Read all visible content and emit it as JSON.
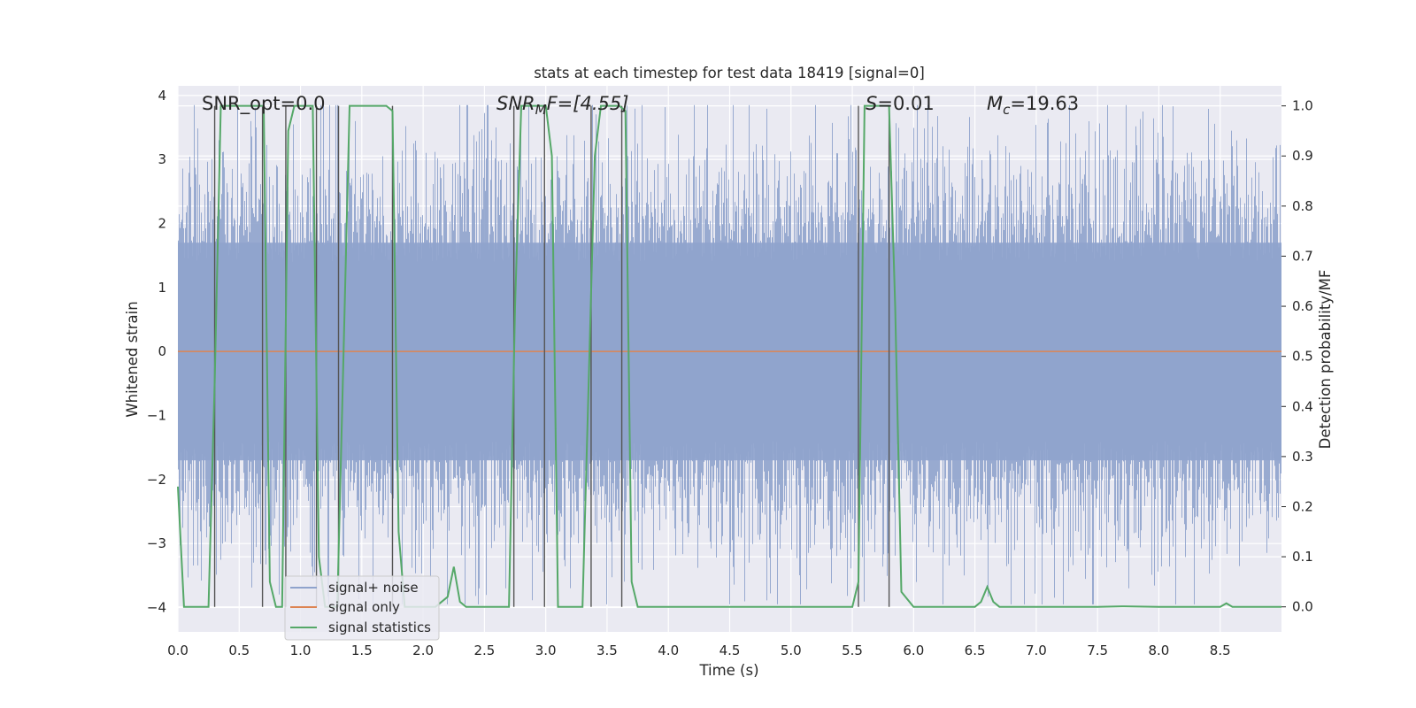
{
  "chart_data": {
    "type": "line",
    "title": "stats at each timestep for test data 18419 [signal=0]",
    "xlabel": "Time (s)",
    "ylabel_left": "Whitened strain",
    "ylabel_right": "Detection probability/MF",
    "xlim": [
      0.0,
      9.0
    ],
    "ylim_left": [
      -4.38,
      4.15
    ],
    "ylim_right": [
      -0.05,
      1.04
    ],
    "x_ticks": [
      "0.0",
      "0.5",
      "1.0",
      "1.5",
      "2.0",
      "2.5",
      "3.0",
      "3.5",
      "4.0",
      "4.5",
      "5.0",
      "5.5",
      "6.0",
      "6.5",
      "7.0",
      "7.5",
      "8.0",
      "8.5"
    ],
    "y_ticks_left": [
      "−4",
      "−3",
      "−2",
      "−1",
      "0",
      "1",
      "2",
      "3",
      "4"
    ],
    "y_ticks_right": [
      "0.0",
      "0.1",
      "0.2",
      "0.3",
      "0.4",
      "0.5",
      "0.6",
      "0.7",
      "0.8",
      "0.9",
      "1.0"
    ],
    "grid": true,
    "annotations": {
      "snr_opt": "SNR_opt=0.0",
      "snr_mf_base": "SNR",
      "snr_mf_sub": "M",
      "snr_mf_rest": "F=[4.55]",
      "s_italic": "S",
      "s_rest": "=0.01",
      "mc_base": "M",
      "mc_sub": "c",
      "mc_rest": "=19.63"
    },
    "series": [
      {
        "name": "signal+ noise",
        "color": "#8fa3cc",
        "description": "whitened noise samples, approx +/-2.3 sigma, range -4 to 3.8"
      },
      {
        "name": "signal only",
        "color": "#dd8452",
        "values": "constant 0"
      },
      {
        "name": "signal statistics",
        "color": "#55a868",
        "x": [
          0.0,
          0.05,
          0.1,
          0.25,
          0.3,
          0.35,
          0.4,
          0.5,
          0.6,
          0.65,
          0.7,
          0.75,
          0.8,
          0.85,
          0.9,
          0.95,
          1.0,
          1.1,
          1.15,
          1.2,
          1.3,
          1.35,
          1.4,
          1.5,
          1.6,
          1.7,
          1.75,
          1.8,
          1.85,
          1.9,
          2.0,
          2.1,
          2.2,
          2.25,
          2.3,
          2.35,
          2.4,
          2.5,
          2.6,
          2.7,
          2.75,
          2.8,
          2.9,
          3.0,
          3.05,
          3.1,
          3.2,
          3.3,
          3.35,
          3.4,
          3.45,
          3.5,
          3.6,
          3.65,
          3.7,
          3.75,
          3.8,
          4.0,
          4.5,
          5.0,
          5.5,
          5.55,
          5.6,
          5.7,
          5.8,
          5.85,
          5.9,
          6.0,
          6.5,
          6.55,
          6.6,
          6.65,
          6.7,
          7.0,
          7.5,
          7.7,
          8.0,
          8.5,
          8.55,
          8.6,
          8.9,
          9.0
        ],
        "values": [
          0.24,
          0.0,
          0.0,
          0.0,
          0.45,
          1.0,
          1.0,
          1.0,
          1.0,
          1.0,
          1.0,
          0.05,
          0.0,
          0.0,
          0.95,
          1.0,
          1.0,
          1.0,
          0.1,
          0.0,
          0.0,
          0.5,
          1.0,
          1.0,
          1.0,
          1.0,
          0.99,
          0.15,
          0.0,
          0.0,
          0.0,
          0.0,
          0.02,
          0.08,
          0.01,
          0.0,
          0.0,
          0.0,
          0.0,
          0.0,
          0.6,
          1.0,
          1.0,
          1.0,
          0.9,
          0.0,
          0.0,
          0.0,
          0.45,
          0.9,
          1.0,
          1.0,
          1.0,
          0.99,
          0.05,
          0.0,
          0.0,
          0.0,
          0.0,
          0.0,
          0.0,
          0.05,
          1.0,
          1.0,
          1.0,
          0.6,
          0.03,
          0.0,
          0.0,
          0.01,
          0.04,
          0.01,
          0.0,
          0.0,
          0.0,
          0.001,
          0.0,
          0.0,
          0.007,
          0.0,
          0.0,
          0.0
        ]
      }
    ],
    "vlines": [
      0.3,
      0.69,
      0.88,
      1.13,
      1.31,
      1.75,
      2.74,
      2.99,
      3.37,
      3.62,
      5.55,
      5.8
    ]
  }
}
